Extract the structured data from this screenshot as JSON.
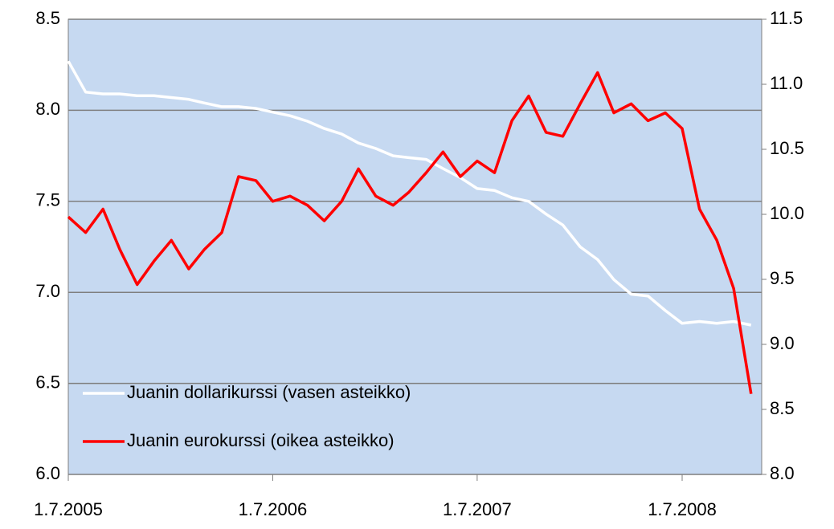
{
  "chart_data": {
    "type": "line",
    "x": [
      "1.7.2005",
      "1.8.2005",
      "1.9.2005",
      "1.10.2005",
      "1.11.2005",
      "1.12.2005",
      "1.1.2006",
      "1.2.2006",
      "1.3.2006",
      "1.4.2006",
      "1.5.2006",
      "1.6.2006",
      "1.7.2006",
      "1.8.2006",
      "1.9.2006",
      "1.10.2006",
      "1.11.2006",
      "1.12.2006",
      "1.1.2007",
      "1.2.2007",
      "1.3.2007",
      "1.4.2007",
      "1.5.2007",
      "1.6.2007",
      "1.7.2007",
      "1.8.2007",
      "1.9.2007",
      "1.10.2007",
      "1.11.2007",
      "1.12.2007",
      "1.1.2008",
      "1.2.2008",
      "1.3.2008",
      "1.4.2008",
      "1.5.2008",
      "1.6.2008",
      "1.7.2008",
      "1.8.2008",
      "1.9.2008",
      "1.10.2008",
      "1.11.2008"
    ],
    "series": [
      {
        "name": "Juanin dollarikurssi (vasen asteikko)",
        "color": "#ffffff",
        "axis": "y",
        "values": [
          8.27,
          8.1,
          8.09,
          8.09,
          8.08,
          8.08,
          8.07,
          8.06,
          8.04,
          8.02,
          8.02,
          8.01,
          7.99,
          7.97,
          7.94,
          7.9,
          7.87,
          7.82,
          7.79,
          7.75,
          7.74,
          7.73,
          7.68,
          7.63,
          7.57,
          7.56,
          7.52,
          7.5,
          7.43,
          7.37,
          7.25,
          7.18,
          7.07,
          6.99,
          6.98,
          6.9,
          6.83,
          6.84,
          6.83,
          6.84,
          6.82
        ]
      },
      {
        "name": "Juanin eurokurssi (oikea asteikko)",
        "color": "#ff0000",
        "axis": "y2",
        "values": [
          9.98,
          9.86,
          10.04,
          9.73,
          9.46,
          9.64,
          9.8,
          9.58,
          9.73,
          9.86,
          10.29,
          10.26,
          10.1,
          10.14,
          10.07,
          9.95,
          10.1,
          10.35,
          10.14,
          10.07,
          10.17,
          10.32,
          10.48,
          10.29,
          10.41,
          10.32,
          10.72,
          10.91,
          10.63,
          10.6,
          10.85,
          11.09,
          10.78,
          10.85,
          10.72,
          10.78,
          10.66,
          10.04,
          9.8,
          9.43,
          8.62
        ]
      }
    ],
    "xlim": [
      "1.7.2005",
      "20.11.2008"
    ],
    "xticks": [
      "1.7.2005",
      "1.7.2006",
      "1.7.2007",
      "1.7.2008"
    ],
    "ylim": [
      6.0,
      8.5
    ],
    "yticks": [
      {
        "value": 6,
        "label": "6.0"
      },
      6.5,
      {
        "value": 7,
        "label": "7.0"
      },
      7.5,
      {
        "value": 8,
        "label": "8.0"
      },
      8.5
    ],
    "y2lim": [
      8.0,
      11.5
    ],
    "y2ticks": [
      {
        "value": 8,
        "label": "8.0"
      },
      8.5,
      {
        "value": 9,
        "label": "9.0"
      },
      9.5,
      {
        "value": 10,
        "label": "10.0"
      },
      10.5,
      {
        "value": 11,
        "label": "11.0"
      },
      11.5
    ],
    "grid": true,
    "legend": "lower left",
    "background": "#c6d9f1"
  }
}
